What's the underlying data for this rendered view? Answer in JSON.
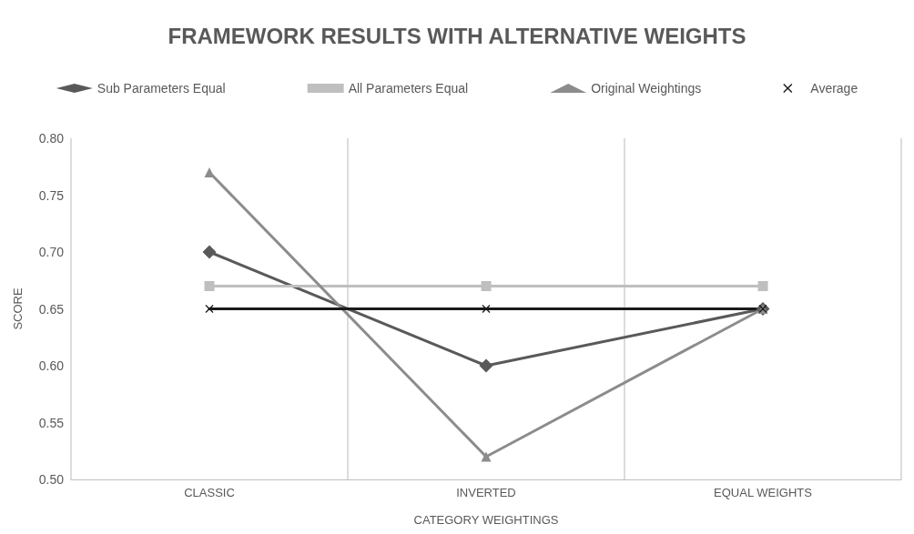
{
  "chart_data": {
    "type": "line",
    "title": "FRAMEWORK RESULTS WITH ALTERNATIVE WEIGHTS",
    "xlabel": "CATEGORY WEIGHTINGS",
    "ylabel": "SCORE",
    "categories": [
      "CLASSIC",
      "INVERTED",
      "EQUAL WEIGHTS"
    ],
    "series": [
      {
        "name": "Sub Parameters Equal",
        "color": "#595959",
        "marker": "diamond",
        "values": [
          0.7,
          0.6,
          0.65
        ]
      },
      {
        "name": "All Parameters Equal",
        "color": "#bfbfbf",
        "marker": "square",
        "values": [
          0.67,
          0.67,
          0.67
        ]
      },
      {
        "name": "Original Weightings",
        "color": "#8c8c8c",
        "marker": "triangle",
        "values": [
          0.77,
          0.52,
          0.65
        ]
      },
      {
        "name": "Average",
        "color": "#1a1a1a",
        "marker": "cross",
        "values": [
          0.65,
          0.65,
          0.65
        ]
      }
    ],
    "ylim": [
      0.5,
      0.8
    ],
    "yticks": [
      {
        "value": 0.5,
        "label": "0.50"
      },
      {
        "value": 0.55,
        "label": "0.55"
      },
      {
        "value": 0.6,
        "label": "0.60"
      },
      {
        "value": 0.65,
        "label": "0.65"
      },
      {
        "value": 0.7,
        "label": "0.70"
      },
      {
        "value": 0.75,
        "label": "0.75"
      },
      {
        "value": 0.8,
        "label": "0.80"
      }
    ],
    "grid": "x",
    "legend": "top",
    "line_style": "solid"
  }
}
